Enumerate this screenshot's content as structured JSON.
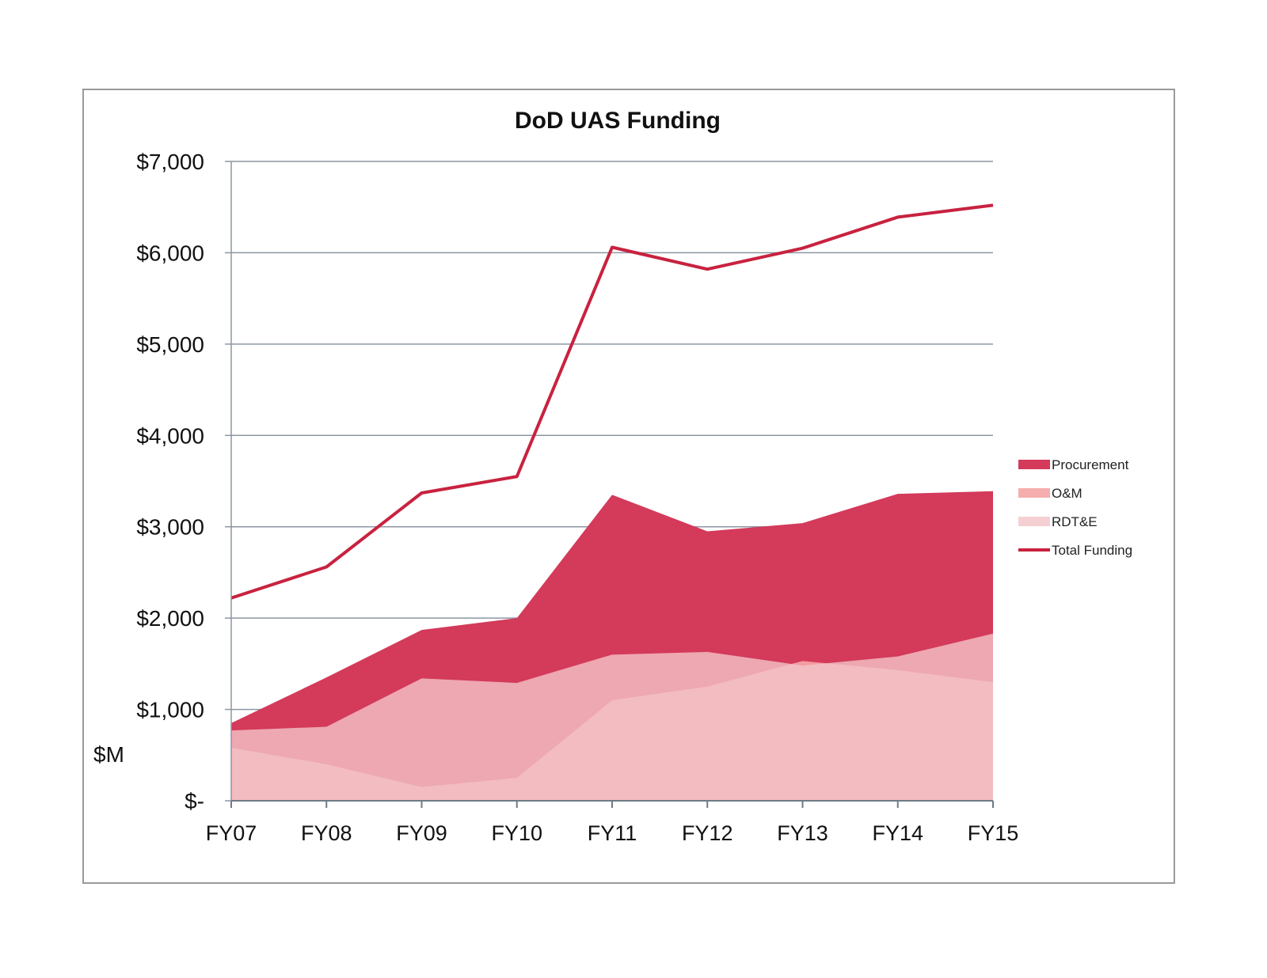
{
  "chart_data": {
    "type": "area",
    "title": "DoD UAS Funding",
    "ylabel": "$M",
    "xlabel": "",
    "categories": [
      "FY07",
      "FY08",
      "FY09",
      "FY10",
      "FY11",
      "FY12",
      "FY13",
      "FY14",
      "FY15"
    ],
    "yticks": [
      "$-",
      "$1,000",
      "$2,000",
      "$3,000",
      "$4,000",
      "$5,000",
      "$6,000",
      "$7,000"
    ],
    "ylim": [
      0,
      7000
    ],
    "grid": true,
    "legend_position": "right",
    "series": [
      {
        "name": "Procurement",
        "kind": "area",
        "color": "#d43a5a",
        "values": [
          850,
          1350,
          1870,
          2000,
          3350,
          2950,
          3040,
          3360,
          3390
        ]
      },
      {
        "name": "O&M",
        "kind": "area",
        "color": "#f4a6a6",
        "values": [
          580,
          400,
          150,
          250,
          1100,
          1250,
          1530,
          1430,
          1300
        ]
      },
      {
        "name": "RDT&E",
        "kind": "area",
        "color": "#f3c4c8",
        "values": [
          770,
          810,
          1340,
          1290,
          1600,
          1630,
          1480,
          1580,
          1830
        ]
      },
      {
        "name": "Total Funding",
        "kind": "line",
        "color": "#c8223f",
        "values": [
          2220,
          2560,
          3370,
          3550,
          6060,
          5820,
          6050,
          6390,
          6520
        ]
      }
    ]
  }
}
